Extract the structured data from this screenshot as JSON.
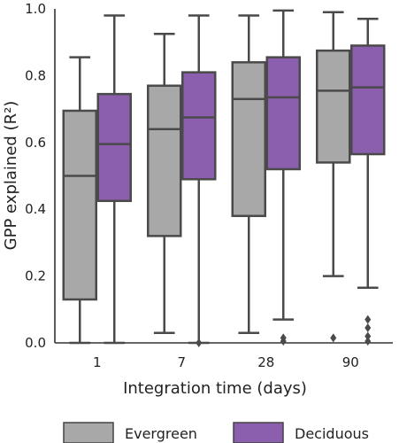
{
  "chart_data": {
    "type": "boxplot",
    "xlabel": "Integration time (days)",
    "ylabel": "GPP explained (R²)",
    "ylim": [
      0,
      1.0
    ],
    "yticks": [
      "0.0",
      "0.2",
      "0.4",
      "0.6",
      "0.8",
      "1.0"
    ],
    "categories": [
      "1",
      "7",
      "28",
      "90"
    ],
    "grid": false,
    "legend_position": "bottom",
    "series": [
      {
        "name": "Evergreen",
        "color": "#a8a8a8",
        "boxes": [
          {
            "whisker_low": 0.0,
            "q1": 0.13,
            "median": 0.5,
            "q3": 0.695,
            "whisker_high": 0.855,
            "outliers": []
          },
          {
            "whisker_low": 0.03,
            "q1": 0.32,
            "median": 0.64,
            "q3": 0.77,
            "whisker_high": 0.925,
            "outliers": []
          },
          {
            "whisker_low": 0.03,
            "q1": 0.38,
            "median": 0.73,
            "q3": 0.84,
            "whisker_high": 0.98,
            "outliers": []
          },
          {
            "whisker_low": 0.2,
            "q1": 0.54,
            "median": 0.755,
            "q3": 0.875,
            "whisker_high": 0.99,
            "outliers": [
              0.015
            ]
          }
        ]
      },
      {
        "name": "Deciduous",
        "color": "#8c5fae",
        "boxes": [
          {
            "whisker_low": 0.0,
            "q1": 0.425,
            "median": 0.595,
            "q3": 0.745,
            "whisker_high": 0.98,
            "outliers": []
          },
          {
            "whisker_low": 0.0,
            "q1": 0.49,
            "median": 0.675,
            "q3": 0.81,
            "whisker_high": 0.98,
            "outliers": [
              0.0
            ]
          },
          {
            "whisker_low": 0.07,
            "q1": 0.52,
            "median": 0.735,
            "q3": 0.855,
            "whisker_high": 0.995,
            "outliers": [
              0.015,
              0.005
            ]
          },
          {
            "whisker_low": 0.165,
            "q1": 0.565,
            "median": 0.765,
            "q3": 0.89,
            "whisker_high": 0.97,
            "outliers": [
              0.07,
              0.045,
              0.02,
              0.005
            ]
          }
        ]
      }
    ]
  }
}
